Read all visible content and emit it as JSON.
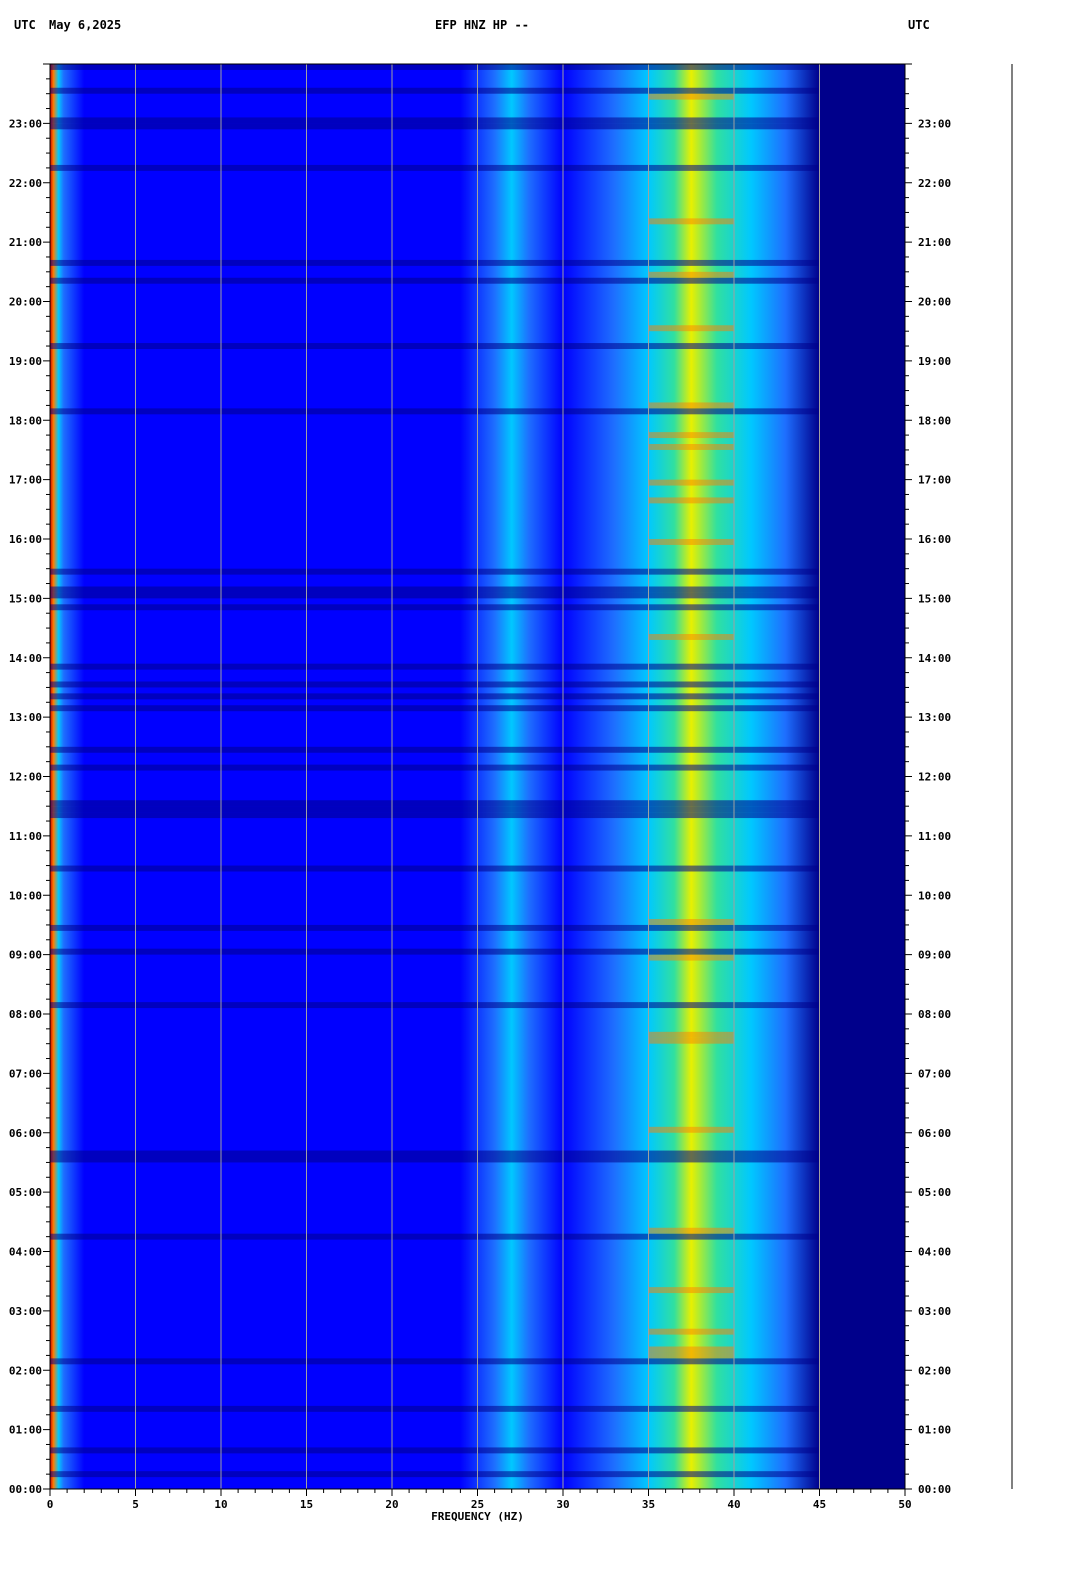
{
  "header": {
    "left_utc": "UTC",
    "date": "May 6,2025",
    "title": "EFP HNZ HP --",
    "right_utc": "UTC"
  },
  "chart_data": {
    "type": "heatmap",
    "title": "EFP HNZ HP --",
    "xlabel": "FREQUENCY (HZ)",
    "ylabel": "",
    "xlim": [
      0,
      50
    ],
    "ylim": [
      0,
      24
    ],
    "x_ticks": [
      "0",
      "5",
      "10",
      "15",
      "20",
      "25",
      "30",
      "35",
      "40",
      "45",
      "50"
    ],
    "y_ticks": [
      "00:00",
      "01:00",
      "02:00",
      "03:00",
      "04:00",
      "05:00",
      "06:00",
      "07:00",
      "08:00",
      "09:00",
      "10:00",
      "11:00",
      "12:00",
      "13:00",
      "14:00",
      "15:00",
      "16:00",
      "17:00",
      "18:00",
      "19:00",
      "20:00",
      "21:00",
      "22:00",
      "23:00"
    ],
    "y_units": "UTC",
    "grid": true,
    "colormap": [
      "#00008b",
      "#0000ff",
      "#1e6fff",
      "#00c8ff",
      "#30e0a0",
      "#e8f000",
      "#ff8000",
      "#cc0000"
    ],
    "features": [
      {
        "name": "low-frequency band",
        "x_range": [
          0,
          0.5
        ],
        "intensity": "high"
      },
      {
        "name": "line near 27 Hz",
        "x_range": [
          26.5,
          27.5
        ],
        "intensity": "medium"
      },
      {
        "name": "broad band 35-40 Hz",
        "x_range": [
          35,
          41
        ],
        "intensity": "high"
      },
      {
        "name": "rolloff",
        "x_range": [
          45,
          50
        ],
        "intensity": "low"
      }
    ]
  }
}
